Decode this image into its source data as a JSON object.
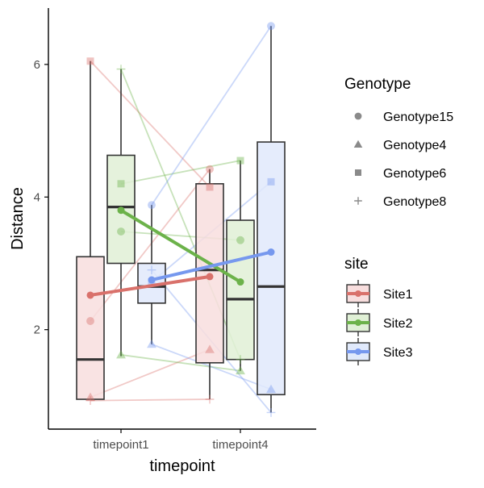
{
  "chart_data": {
    "type": "box",
    "xlabel": "timepoint",
    "ylabel": "Distance",
    "categories": [
      "timepoint1",
      "timepoint4"
    ],
    "y_ticks": [
      2,
      4,
      6
    ],
    "ylim": [
      0.5,
      6.85
    ],
    "grid": false,
    "legend_position": "right",
    "sites": [
      {
        "name": "Site1",
        "color": "#D9716B",
        "fill": "#F8DEDE"
      },
      {
        "name": "Site2",
        "color": "#6CB24A",
        "fill": "#E0F0D6"
      },
      {
        "name": "Site3",
        "color": "#7698EE",
        "fill": "#E0E9FB"
      }
    ],
    "genotypes": [
      {
        "name": "Genotype15",
        "shape": "circle"
      },
      {
        "name": "Genotype4",
        "shape": "triangle"
      },
      {
        "name": "Genotype6",
        "shape": "square"
      },
      {
        "name": "Genotype8",
        "shape": "plus"
      }
    ],
    "boxes": [
      {
        "category": "timepoint1",
        "site": "Site1",
        "min": 0.95,
        "q1": 0.95,
        "median": 1.55,
        "q3": 3.1,
        "max": 6.05
      },
      {
        "category": "timepoint1",
        "site": "Site2",
        "min": 1.6,
        "q1": 3.0,
        "median": 3.85,
        "q3": 4.63,
        "max": 5.93
      },
      {
        "category": "timepoint1",
        "site": "Site3",
        "min": 1.78,
        "q1": 2.4,
        "median": 2.65,
        "q3": 3.0,
        "max": 3.88
      },
      {
        "category": "timepoint4",
        "site": "Site1",
        "min": 0.95,
        "q1": 1.5,
        "median": 2.9,
        "q3": 4.2,
        "max": 4.42
      },
      {
        "category": "timepoint4",
        "site": "Site2",
        "min": 1.38,
        "q1": 1.55,
        "median": 2.46,
        "q3": 3.65,
        "max": 4.55
      },
      {
        "category": "timepoint4",
        "site": "Site3",
        "min": 0.75,
        "q1": 1.02,
        "median": 2.65,
        "q3": 4.83,
        "max": 6.58
      }
    ],
    "means": [
      {
        "site": "Site1",
        "values": [
          2.52,
          2.8
        ]
      },
      {
        "site": "Site2",
        "values": [
          3.8,
          2.72
        ]
      },
      {
        "site": "Site3",
        "values": [
          2.75,
          3.17
        ]
      }
    ],
    "paired_points": [
      {
        "site": "Site1",
        "genotype": "Genotype15",
        "values": [
          2.13,
          4.42
        ]
      },
      {
        "site": "Site1",
        "genotype": "Genotype4",
        "values": [
          0.98,
          1.7
        ]
      },
      {
        "site": "Site1",
        "genotype": "Genotype6",
        "values": [
          6.05,
          4.15
        ]
      },
      {
        "site": "Site1",
        "genotype": "Genotype8",
        "values": [
          0.93,
          0.95
        ]
      },
      {
        "site": "Site2",
        "genotype": "Genotype15",
        "values": [
          3.48,
          3.35
        ]
      },
      {
        "site": "Site2",
        "genotype": "Genotype4",
        "values": [
          1.62,
          1.38
        ]
      },
      {
        "site": "Site2",
        "genotype": "Genotype6",
        "values": [
          4.2,
          4.55
        ]
      },
      {
        "site": "Site2",
        "genotype": "Genotype8",
        "values": [
          5.93,
          1.55
        ]
      },
      {
        "site": "Site3",
        "genotype": "Genotype15",
        "values": [
          3.88,
          6.58
        ]
      },
      {
        "site": "Site3",
        "genotype": "Genotype4",
        "values": [
          1.78,
          1.1
        ]
      },
      {
        "site": "Site3",
        "genotype": "Genotype6",
        "values": [
          2.72,
          4.23
        ]
      },
      {
        "site": "Site3",
        "genotype": "Genotype8",
        "values": [
          2.9,
          0.75
        ]
      }
    ],
    "legend": {
      "genotype_title": "Genotype",
      "site_title": "site"
    }
  }
}
